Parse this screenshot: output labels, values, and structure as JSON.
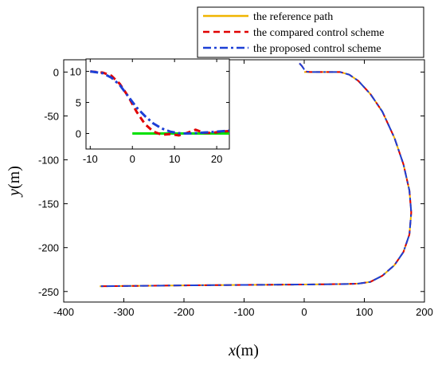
{
  "chart_data": [
    {
      "type": "line",
      "xlabel_var": "x",
      "xlabel_unit": "(m)",
      "ylabel_var": "y",
      "ylabel_unit": "(m)",
      "xlim": [
        -400,
        200
      ],
      "ylim": [
        -262,
        14
      ],
      "xticks": [
        -400,
        -300,
        -200,
        -100,
        0,
        100,
        200
      ],
      "yticks": [
        0,
        -50,
        -100,
        -150,
        -200,
        -250
      ],
      "legend": {
        "placement": "top-right"
      },
      "series": [
        {
          "name": "the reference path",
          "color": "#f0b400",
          "style": "solid",
          "points": [
            [
              0,
              0
            ],
            [
              60,
              0
            ],
            [
              75,
              -3
            ],
            [
              90,
              -10
            ],
            [
              110,
              -25
            ],
            [
              130,
              -45
            ],
            [
              150,
              -75
            ],
            [
              165,
              -105
            ],
            [
              175,
              -135
            ],
            [
              178,
              -160
            ],
            [
              175,
              -185
            ],
            [
              165,
              -205
            ],
            [
              150,
              -220
            ],
            [
              130,
              -232
            ],
            [
              110,
              -239
            ],
            [
              90,
              -241
            ],
            [
              70,
              -241.5
            ],
            [
              0,
              -242
            ],
            [
              -100,
              -242.5
            ],
            [
              -200,
              -243
            ],
            [
              -340,
              -244
            ]
          ]
        },
        {
          "name": "the compared control scheme",
          "color": "#e00000",
          "style": "dashed",
          "points": [
            [
              -8,
              10
            ],
            [
              -4,
              7
            ],
            [
              0,
              3
            ],
            [
              4,
              0.5
            ],
            [
              10,
              0
            ],
            [
              60,
              0
            ],
            [
              75,
              -3
            ],
            [
              90,
              -10
            ],
            [
              110,
              -25
            ],
            [
              130,
              -45
            ],
            [
              150,
              -75
            ],
            [
              165,
              -105
            ],
            [
              175,
              -135
            ],
            [
              178,
              -160
            ],
            [
              175,
              -185
            ],
            [
              165,
              -205
            ],
            [
              150,
              -220
            ],
            [
              130,
              -232
            ],
            [
              110,
              -239
            ],
            [
              90,
              -241
            ],
            [
              70,
              -241.5
            ],
            [
              0,
              -242
            ],
            [
              -100,
              -242.5
            ],
            [
              -200,
              -243
            ],
            [
              -340,
              -244
            ]
          ]
        },
        {
          "name": "the proposed control scheme",
          "color": "#1c3fd6",
          "style": "dashdot",
          "points": [
            [
              -8,
              10
            ],
            [
              -4,
              7
            ],
            [
              0,
              3
            ],
            [
              4,
              0.5
            ],
            [
              10,
              0
            ],
            [
              60,
              0
            ],
            [
              75,
              -3
            ],
            [
              90,
              -10
            ],
            [
              110,
              -25
            ],
            [
              130,
              -45
            ],
            [
              150,
              -75
            ],
            [
              165,
              -105
            ],
            [
              175,
              -135
            ],
            [
              178,
              -160
            ],
            [
              175,
              -185
            ],
            [
              165,
              -205
            ],
            [
              150,
              -220
            ],
            [
              130,
              -232
            ],
            [
              110,
              -239
            ],
            [
              90,
              -241
            ],
            [
              70,
              -241.5
            ],
            [
              0,
              -242
            ],
            [
              -100,
              -242.5
            ],
            [
              -200,
              -243
            ],
            [
              -340,
              -244
            ]
          ]
        }
      ]
    },
    {
      "type": "line",
      "role": "inset-zoom",
      "xlim": [
        -11,
        23
      ],
      "ylim": [
        -2.5,
        12
      ],
      "xticks": [
        -10,
        0,
        10,
        20
      ],
      "yticks": [
        10,
        5,
        0
      ],
      "series": [
        {
          "name": "green path",
          "color": "#00e000",
          "style": "solid",
          "points": [
            [
              0,
              0
            ],
            [
              23,
              0
            ]
          ]
        },
        {
          "name": "the compared control scheme",
          "color": "#e00000",
          "style": "dashed",
          "points": [
            [
              -10,
              10
            ],
            [
              -7,
              9.8
            ],
            [
              -5,
              9.3
            ],
            [
              -3,
              8
            ],
            [
              -1,
              6
            ],
            [
              1,
              3.5
            ],
            [
              3,
              1.5
            ],
            [
              5,
              0.3
            ],
            [
              7,
              -0.2
            ],
            [
              9,
              -0.1
            ],
            [
              11,
              -0.3
            ],
            [
              13,
              0.1
            ],
            [
              15,
              0.6
            ],
            [
              17,
              0.1
            ],
            [
              19,
              0.1
            ],
            [
              21,
              0.3
            ],
            [
              23,
              0.4
            ]
          ]
        },
        {
          "name": "the proposed control scheme",
          "color": "#1c3fd6",
          "style": "dashdot",
          "points": [
            [
              -10,
              10
            ],
            [
              -7,
              9.7
            ],
            [
              -5,
              9
            ],
            [
              -3,
              7.8
            ],
            [
              -1,
              6
            ],
            [
              1,
              4.2
            ],
            [
              3,
              2.8
            ],
            [
              5,
              1.6
            ],
            [
              7,
              0.8
            ],
            [
              9,
              0.3
            ],
            [
              11,
              0.05
            ],
            [
              13,
              0
            ],
            [
              15,
              0.05
            ],
            [
              17,
              0.15
            ],
            [
              19,
              0.25
            ],
            [
              21,
              0.35
            ],
            [
              23,
              0.45
            ]
          ]
        }
      ]
    }
  ]
}
